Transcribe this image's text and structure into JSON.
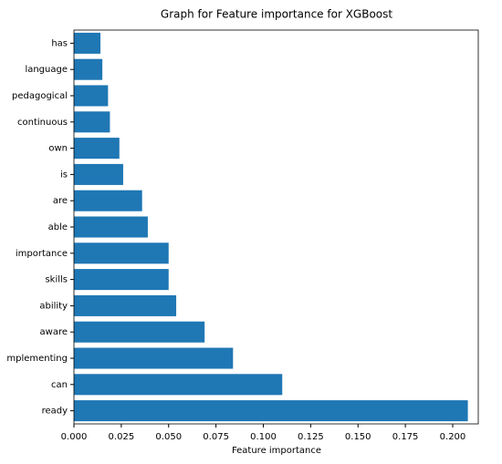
{
  "chart_data": {
    "type": "barh",
    "title": "Graph for Feature importance for XGBoost",
    "xlabel": "Feature importance",
    "categories": [
      "ready",
      "can",
      "mplementing",
      "aware",
      "ability",
      "skills",
      "importance",
      "able",
      "are",
      "is",
      "own",
      "continuous",
      "pedagogical",
      "language",
      "has"
    ],
    "values": [
      0.208,
      0.11,
      0.084,
      0.069,
      0.054,
      0.05,
      0.05,
      0.039,
      0.036,
      0.026,
      0.024,
      0.019,
      0.018,
      0.015,
      0.014
    ],
    "color": "#1f77b4",
    "xlim": [
      0,
      0.2135
    ],
    "xticks": [
      {
        "value": 0,
        "label": "0.000"
      },
      {
        "value": 0.025,
        "label": "0.025"
      },
      {
        "value": 0.05,
        "label": "0.050"
      },
      {
        "value": 0.075,
        "label": "0.075"
      },
      {
        "value": 0.1,
        "label": "0.100"
      },
      {
        "value": 0.125,
        "label": "0.125"
      },
      {
        "value": 0.15,
        "label": "0.150"
      },
      {
        "value": 0.175,
        "label": "0.175"
      },
      {
        "value": 0.2,
        "label": "0.200"
      }
    ]
  }
}
